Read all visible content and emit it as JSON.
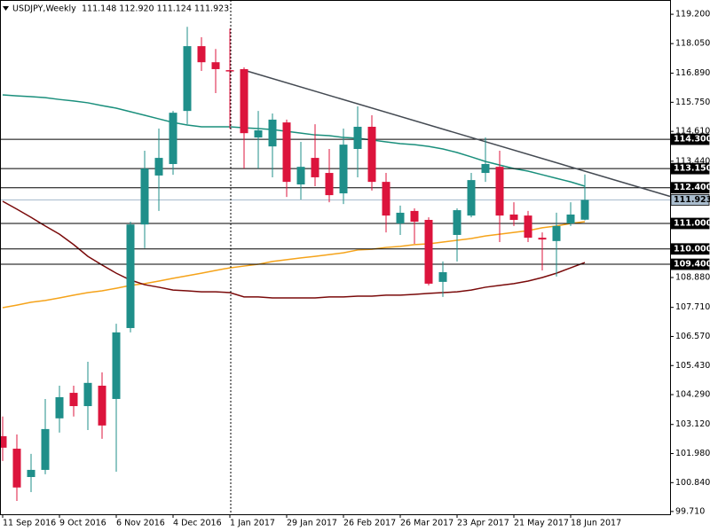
{
  "chart_data": {
    "type": "candlestick",
    "title": "USDJPY,Weekly",
    "header": "111.148 112.920 111.124 111.923",
    "categories": [
      "11 Sep 2016",
      null,
      null,
      null,
      "9 Oct 2016",
      null,
      null,
      null,
      "6 Nov 2016",
      null,
      null,
      null,
      "4 Dec 2016",
      null,
      null,
      null,
      "1 Jan 2017",
      null,
      null,
      null,
      "29 Jan 2017",
      null,
      null,
      null,
      "26 Feb 2017",
      null,
      null,
      null,
      "26 Mar 2017",
      null,
      null,
      null,
      "23 Apr 2017",
      null,
      null,
      null,
      "21 May 2017",
      null,
      null,
      null,
      "18 Jun 2017",
      null
    ],
    "open": [
      102.66,
      102.17,
      101.06,
      101.34,
      103.36,
      104.36,
      103.84,
      104.64,
      104.12,
      106.9,
      110.96,
      112.88,
      113.33,
      115.41,
      117.95,
      117.32,
      117.01,
      117.05,
      114.37,
      114.02,
      114.96,
      112.53,
      113.57,
      112.98,
      112.18,
      113.92,
      114.79,
      112.63,
      111.0,
      111.49,
      111.14,
      108.71,
      110.55,
      111.31,
      112.98,
      113.22,
      111.35,
      111.31,
      110.44,
      110.31,
      111.0,
      111.148
    ],
    "high": [
      103.43,
      102.73,
      101.97,
      104.12,
      104.64,
      104.64,
      105.58,
      105.16,
      107.07,
      111.07,
      113.85,
      114.72,
      115.41,
      118.71,
      118.3,
      117.84,
      118.64,
      117.12,
      115.41,
      115.31,
      115.07,
      114.2,
      114.89,
      113.92,
      114.72,
      115.59,
      115.24,
      112.98,
      111.7,
      111.59,
      111.24,
      109.51,
      111.59,
      112.98,
      114.37,
      113.85,
      111.83,
      111.49,
      110.65,
      111.42,
      111.83,
      112.92
    ],
    "low": [
      101.69,
      100.12,
      100.47,
      101.17,
      102.8,
      103.43,
      102.9,
      102.56,
      101.27,
      106.73,
      110.03,
      111.49,
      112.91,
      114.89,
      116.98,
      116.11,
      114.72,
      113.15,
      113.15,
      112.81,
      112.04,
      111.94,
      112.46,
      111.83,
      111.76,
      112.81,
      112.29,
      110.65,
      110.55,
      110.2,
      108.57,
      108.12,
      109.51,
      111.24,
      112.63,
      110.27,
      110.9,
      110.27,
      109.16,
      108.92,
      110.9,
      111.124
    ],
    "close": [
      102.21,
      100.65,
      101.34,
      102.94,
      104.19,
      103.84,
      104.75,
      103.08,
      106.73,
      110.96,
      113.15,
      113.57,
      115.34,
      117.95,
      117.32,
      117.05,
      116.98,
      114.54,
      114.65,
      115.07,
      112.63,
      113.22,
      112.81,
      112.11,
      114.09,
      114.79,
      112.63,
      111.31,
      111.42,
      111.07,
      108.64,
      109.09,
      111.52,
      112.7,
      113.33,
      111.31,
      111.14,
      110.44,
      110.37,
      110.9,
      111.35,
      111.923
    ],
    "up_color": "#1f8f8a",
    "down_color": "#dc143c",
    "moving_averages": [
      {
        "color": "#1a8f7c",
        "values": [
          116.04,
          116.0,
          115.97,
          115.93,
          115.86,
          115.8,
          115.73,
          115.62,
          115.52,
          115.38,
          115.24,
          115.1,
          114.96,
          114.86,
          114.79,
          114.79,
          114.79,
          114.75,
          114.72,
          114.68,
          114.61,
          114.54,
          114.47,
          114.44,
          114.37,
          114.34,
          114.27,
          114.2,
          114.13,
          114.09,
          114.02,
          113.92,
          113.78,
          113.61,
          113.43,
          113.29,
          113.15,
          113.05,
          112.91,
          112.77,
          112.63,
          112.46
        ]
      },
      {
        "color": "#f5a31a",
        "values": [
          107.7,
          107.8,
          107.91,
          107.98,
          108.08,
          108.19,
          108.29,
          108.36,
          108.46,
          108.57,
          108.64,
          108.74,
          108.85,
          108.95,
          109.05,
          109.16,
          109.26,
          109.33,
          109.4,
          109.51,
          109.58,
          109.65,
          109.71,
          109.78,
          109.85,
          109.96,
          109.99,
          110.06,
          110.1,
          110.17,
          110.2,
          110.27,
          110.34,
          110.41,
          110.51,
          110.58,
          110.65,
          110.72,
          110.83,
          110.9,
          111.0,
          111.07
        ]
      },
      {
        "color": "#7a0a0a",
        "values": [
          111.87,
          111.56,
          111.24,
          110.9,
          110.58,
          110.17,
          109.71,
          109.37,
          109.05,
          108.78,
          108.6,
          108.5,
          108.39,
          108.36,
          108.32,
          108.32,
          108.29,
          108.12,
          108.12,
          108.08,
          108.08,
          108.08,
          108.08,
          108.12,
          108.12,
          108.15,
          108.15,
          108.19,
          108.19,
          108.22,
          108.26,
          108.29,
          108.32,
          108.39,
          108.5,
          108.57,
          108.64,
          108.74,
          108.88,
          109.05,
          109.26,
          109.47
        ]
      }
    ],
    "trendline": {
      "x": [
        17,
        41
      ],
      "values": [
        117.01,
        113.05
      ],
      "color": "#444a52"
    },
    "levels": [
      {
        "value": 114.3,
        "label": "114.300"
      },
      {
        "value": 113.15,
        "label": "113.150"
      },
      {
        "value": 112.4,
        "label": "112.400"
      },
      {
        "value": 111,
        "label": "111.000"
      },
      {
        "value": 110,
        "label": "110.000"
      },
      {
        "value": 109.4,
        "label": "109.400"
      }
    ],
    "price_line": {
      "value": 111.923,
      "label": "111.923",
      "color": "#a9bccd"
    },
    "ylim": [
      99.6,
      119.69
    ],
    "yticks": [
      {
        "value": 119.2,
        "label": "119.200"
      },
      {
        "value": 118.05,
        "label": "118.050"
      },
      {
        "value": 116.89,
        "label": "116.890"
      },
      {
        "value": 115.75,
        "label": "115.750"
      },
      {
        "value": 114.61,
        "label": "114.610"
      },
      {
        "value": 113.44,
        "label": "113.440"
      },
      {
        "value": 108.88,
        "label": "108.880"
      },
      {
        "value": 107.71,
        "label": "107.710"
      },
      {
        "value": 106.57,
        "label": "106.570"
      },
      {
        "value": 105.43,
        "label": "105.430"
      },
      {
        "value": 104.29,
        "label": "104.290"
      },
      {
        "value": 103.12,
        "label": "103.120"
      },
      {
        "value": 101.98,
        "label": "101.980"
      },
      {
        "value": 100.84,
        "label": "100.840"
      },
      {
        "value": 99.71,
        "label": "99.710"
      }
    ]
  }
}
